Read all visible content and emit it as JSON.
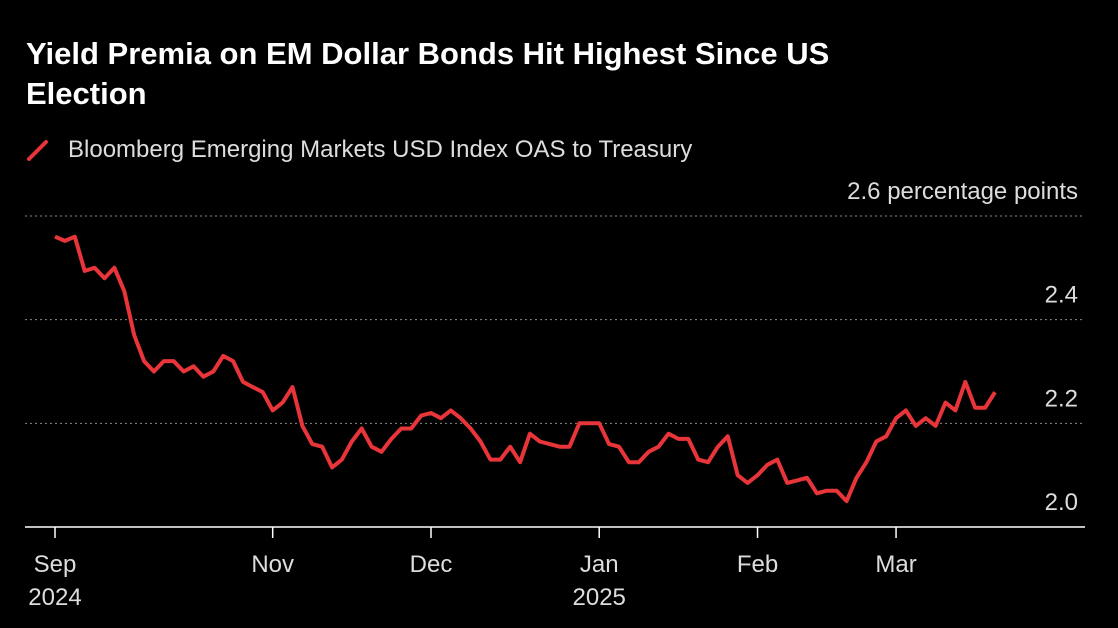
{
  "chart_data": {
    "type": "line",
    "title": "Yield Premia on EM Dollar Bonds Hit Highest Since US Election",
    "categories": [
      "Sep\n2024",
      null,
      null,
      null,
      null,
      null,
      null,
      null,
      null,
      null,
      null,
      null,
      null,
      null,
      null,
      null,
      null,
      null,
      null,
      null,
      null,
      null,
      "Nov",
      null,
      null,
      null,
      null,
      null,
      null,
      null,
      null,
      null,
      null,
      null,
      null,
      null,
      null,
      null,
      "Dec",
      null,
      null,
      null,
      null,
      null,
      null,
      null,
      null,
      null,
      null,
      null,
      null,
      null,
      null,
      null,
      null,
      "Jan\n2025",
      null,
      null,
      null,
      null,
      null,
      null,
      null,
      null,
      null,
      null,
      null,
      null,
      null,
      null,
      null,
      "Feb",
      null,
      null,
      null,
      null,
      null,
      null,
      null,
      null,
      null,
      null,
      null,
      null,
      null,
      "Mar",
      null,
      null,
      null,
      null,
      null,
      null,
      null,
      null,
      null,
      null
    ],
    "series": [
      {
        "name": "Bloomberg Emerging Markets USD Index OAS to Treasury",
        "color": "#e8353a",
        "values": [
          2.56,
          2.552,
          2.56,
          2.494,
          2.5,
          2.48,
          2.5,
          2.455,
          2.37,
          2.32,
          2.3,
          2.32,
          2.32,
          2.3,
          2.31,
          2.29,
          2.3,
          2.33,
          2.32,
          2.28,
          2.27,
          2.26,
          2.225,
          2.24,
          2.27,
          2.195,
          2.16,
          2.155,
          2.115,
          2.13,
          2.165,
          2.19,
          2.155,
          2.145,
          2.17,
          2.19,
          2.19,
          2.215,
          2.22,
          2.21,
          2.225,
          2.21,
          2.19,
          2.165,
          2.13,
          2.13,
          2.155,
          2.125,
          2.18,
          2.165,
          2.16,
          2.155,
          2.155,
          2.2,
          2.2,
          2.2,
          2.16,
          2.155,
          2.125,
          2.125,
          2.145,
          2.155,
          2.18,
          2.17,
          2.17,
          2.13,
          2.125,
          2.155,
          2.175,
          2.1,
          2.085,
          2.1,
          2.12,
          2.13,
          2.085,
          2.09,
          2.095,
          2.065,
          2.07,
          2.07,
          2.05,
          2.095,
          2.125,
          2.165,
          2.175,
          2.21,
          2.225,
          2.195,
          2.21,
          2.195,
          2.24,
          2.225,
          2.28,
          2.23,
          2.23,
          2.26
        ]
      }
    ],
    "ylim": [
      2.0,
      2.6
    ],
    "yticks": [
      {
        "value": 2,
        "label": "2.0"
      },
      {
        "value": 2.2,
        "label": "2.2"
      },
      {
        "value": 2.4,
        "label": "2.4"
      },
      {
        "value": 2.6,
        "label": "2.6 percentage points"
      }
    ],
    "grid": true
  }
}
